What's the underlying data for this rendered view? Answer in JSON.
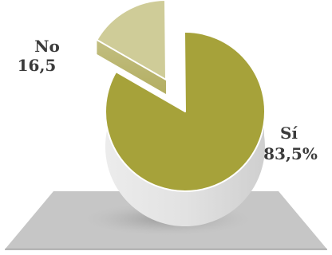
{
  "chart_data": {
    "type": "pie",
    "title": "",
    "slices": [
      {
        "name": "No",
        "value": 16.5,
        "label_name": "No",
        "label_value": "16,5",
        "color": "#cfcc98"
      },
      {
        "name": "Sí",
        "value": 83.5,
        "label_name": "Sí",
        "label_value": "83,5%",
        "color": "#a6a23a"
      }
    ],
    "colors": {
      "pie_side": "#dcdcdc",
      "inner_wall": "#c8c8c8",
      "pedestal": "#c6c6c6",
      "shadow": "#bdbdbd",
      "base_line": "#808080"
    },
    "style": "3d-exploded"
  }
}
